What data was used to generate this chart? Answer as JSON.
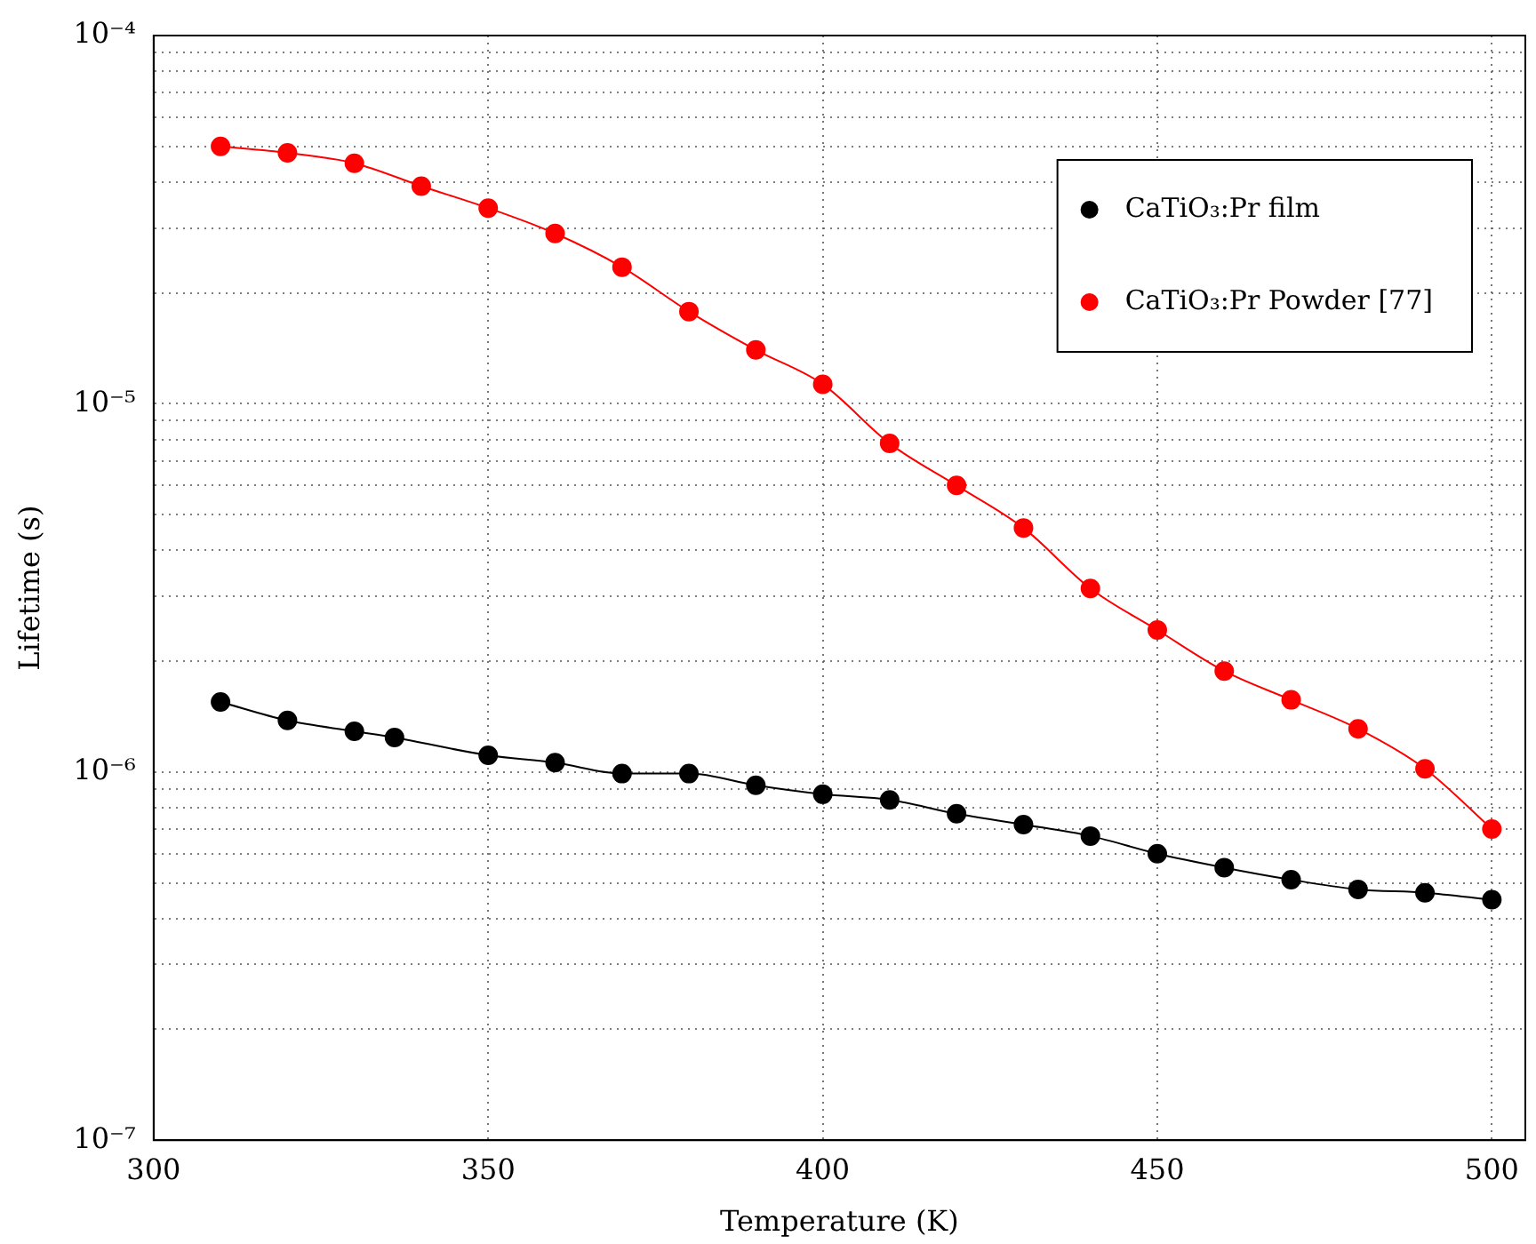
{
  "chart_data": {
    "type": "line",
    "xlabel": "Temperature (K)",
    "ylabel": "Lifetime (s)",
    "xlim": [
      300,
      505
    ],
    "xticks": [
      300,
      350,
      400,
      450,
      500
    ],
    "ylim": [
      1e-07,
      0.0001
    ],
    "yticks": [
      {
        "value": 1e-07,
        "label": "10⁻⁷"
      },
      {
        "value": 2e-07,
        "label": null
      },
      {
        "value": 3e-07,
        "label": null
      },
      {
        "value": 4e-07,
        "label": null
      },
      {
        "value": 5e-07,
        "label": null
      },
      {
        "value": 6e-07,
        "label": null
      },
      {
        "value": 7e-07,
        "label": null
      },
      {
        "value": 8e-07,
        "label": null
      },
      {
        "value": 9e-07,
        "label": null
      },
      {
        "value": 1e-06,
        "label": "10⁻⁶"
      },
      {
        "value": 2e-06,
        "label": null
      },
      {
        "value": 3e-06,
        "label": null
      },
      {
        "value": 4e-06,
        "label": null
      },
      {
        "value": 5e-06,
        "label": null
      },
      {
        "value": 6e-06,
        "label": null
      },
      {
        "value": 7e-06,
        "label": null
      },
      {
        "value": 8e-06,
        "label": null
      },
      {
        "value": 9e-06,
        "label": null
      },
      {
        "value": 1e-05,
        "label": "10⁻⁵"
      },
      {
        "value": 2e-05,
        "label": null
      },
      {
        "value": 3e-05,
        "label": null
      },
      {
        "value": 4e-05,
        "label": null
      },
      {
        "value": 5e-05,
        "label": null
      },
      {
        "value": 6e-05,
        "label": null
      },
      {
        "value": 7e-05,
        "label": null
      },
      {
        "value": 8e-05,
        "label": null
      },
      {
        "value": 9e-05,
        "label": null
      },
      {
        "value": 0.0001,
        "label": "10⁻⁴"
      }
    ],
    "log": "y",
    "grid": true,
    "legend": "top right",
    "marker": "circle",
    "line_style": "solid",
    "series": [
      {
        "name": "CaTiO₃:Pr film",
        "color": "#000000",
        "x": [
          310,
          320,
          330,
          336,
          350,
          360,
          370,
          380,
          390,
          400,
          410,
          420,
          430,
          440,
          450,
          460,
          470,
          480,
          490,
          500
        ],
        "values": [
          1.55e-06,
          1.38e-06,
          1.29e-06,
          1.24e-06,
          1.11e-06,
          1.06e-06,
          9.9e-07,
          9.9e-07,
          9.2e-07,
          8.7e-07,
          8.4e-07,
          7.7e-07,
          7.2e-07,
          6.7e-07,
          6e-07,
          5.5e-07,
          5.1e-07,
          4.8e-07,
          4.7e-07,
          4.5e-07
        ]
      },
      {
        "name": "CaTiO₃:Pr Powder [77]",
        "color": "#ff0000",
        "x": [
          310,
          320,
          330,
          340,
          350,
          360,
          370,
          380,
          390,
          400,
          410,
          420,
          430,
          440,
          450,
          460,
          470,
          480,
          490,
          500
        ],
        "values": [
          5e-05,
          4.8e-05,
          4.5e-05,
          3.9e-05,
          3.4e-05,
          2.9e-05,
          2.35e-05,
          1.78e-05,
          1.4e-05,
          1.13e-05,
          7.8e-06,
          6e-06,
          4.6e-06,
          3.15e-06,
          2.43e-06,
          1.88e-06,
          1.57e-06,
          1.31e-06,
          1.02e-06,
          7e-07
        ]
      }
    ]
  }
}
